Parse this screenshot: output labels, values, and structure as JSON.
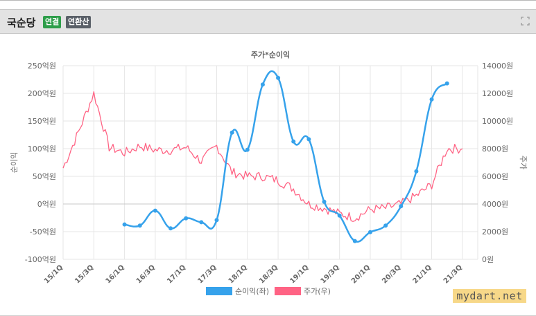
{
  "header": {
    "title": "국순당",
    "badge_consolidated": "연결",
    "badge_annualized": "연환산"
  },
  "watermark": "mydart.net",
  "chart_data": {
    "type": "line",
    "title": "주가*순이익",
    "y_left_label": "순이익",
    "y_right_label": "주가",
    "y_left_range": [
      -100,
      250
    ],
    "y_right_range": [
      0,
      14000
    ],
    "y_left_ticks": [
      "250억원",
      "200억원",
      "150억원",
      "100억원",
      "50억원",
      "0억원",
      "-50억원",
      "-100억원"
    ],
    "y_right_ticks": [
      "14000원",
      "12000원",
      "10000원",
      "8000원",
      "6000원",
      "4000원",
      "2000원",
      "0원"
    ],
    "x_ticks": [
      "15/1Q",
      "15/3Q",
      "16/1Q",
      "16/3Q",
      "17/1Q",
      "17/3Q",
      "18/1Q",
      "18/3Q",
      "19/1Q",
      "19/3Q",
      "20/1Q",
      "20/3Q",
      "21/1Q",
      "21/3Q"
    ],
    "legend": [
      "순이익(좌)",
      "주가(우)"
    ],
    "colors": {
      "profit": "#36a2eb",
      "price": "#ff6384",
      "grid": "#e6e6e6",
      "axis": "#666666"
    },
    "series": [
      {
        "name": "순이익(좌)",
        "axis": "left",
        "x": [
          "16/1Q",
          "16/2Q",
          "16/3Q",
          "16/4Q",
          "17/1Q",
          "17/2Q",
          "17/3Q",
          "17/4Q",
          "18/1Q",
          "18/2Q",
          "18/3Q",
          "18/4Q",
          "19/1Q",
          "19/2Q",
          "19/3Q",
          "19/4Q",
          "20/1Q",
          "20/2Q",
          "20/3Q",
          "20/4Q",
          "21/1Q",
          "21/2Q"
        ],
        "values": [
          -37,
          -39,
          -12,
          -44,
          -26,
          -33,
          -29,
          129,
          98,
          216,
          228,
          113,
          117,
          4,
          -21,
          -67,
          -51,
          -39,
          -4,
          59,
          189,
          218
        ]
      },
      {
        "name": "주가(우)",
        "axis": "right",
        "x": [
          "15/1Q",
          "15/2Q",
          "15/3Q",
          "15/4Q",
          "16/1Q",
          "16/2Q",
          "16/3Q",
          "16/4Q",
          "17/1Q",
          "17/2Q",
          "17/3Q",
          "17/4Q",
          "18/1Q",
          "18/2Q",
          "18/3Q",
          "18/4Q",
          "19/1Q",
          "19/2Q",
          "19/3Q",
          "19/4Q",
          "20/1Q",
          "20/2Q",
          "20/3Q",
          "20/4Q",
          "21/1Q",
          "21/2Q",
          "21/3Q"
        ],
        "values": [
          6600,
          9200,
          12000,
          8100,
          7700,
          8200,
          7900,
          7900,
          8100,
          7100,
          8200,
          6300,
          6000,
          6000,
          5700,
          5100,
          4000,
          3700,
          3300,
          3000,
          3600,
          3700,
          4000,
          4600,
          5400,
          8000,
          8000
        ]
      }
    ]
  }
}
